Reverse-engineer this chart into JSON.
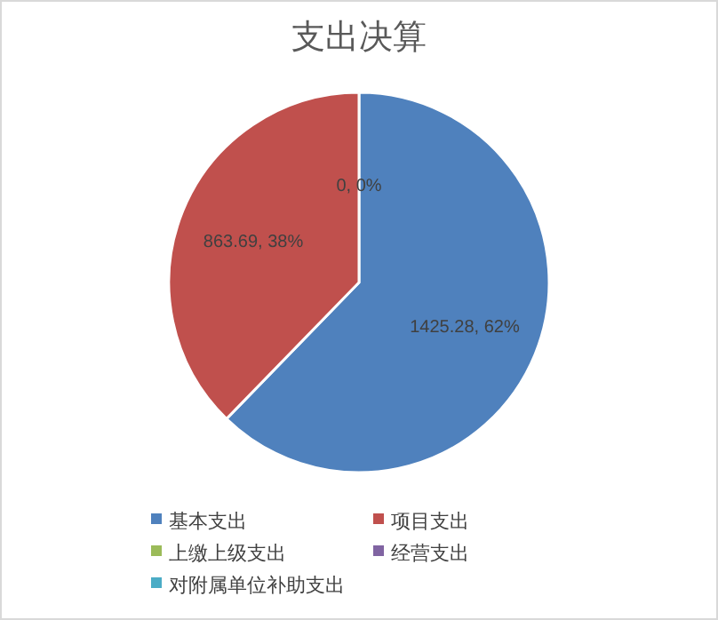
{
  "chart_data": {
    "type": "pie",
    "title": "支出决算",
    "categories": [
      "基本支出",
      "项目支出",
      "上缴上级支出",
      "经营支出",
      "对附属单位补助支出"
    ],
    "values": [
      1425.28,
      863.69,
      0,
      0,
      0
    ],
    "colors": [
      "#4f81bd",
      "#c0504d",
      "#9bbb59",
      "#8064a2",
      "#4bacc6"
    ],
    "value_labels": [
      "1425.28, 62%",
      "863.69, 38%",
      "0, 0%",
      null,
      null
    ],
    "legend": "bottom"
  }
}
